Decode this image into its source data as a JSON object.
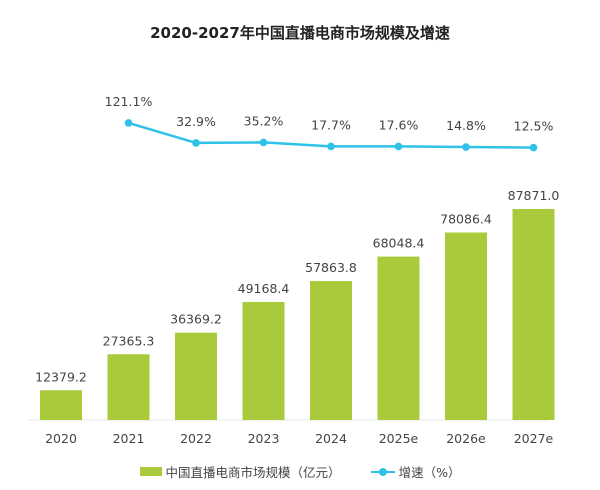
{
  "chart_data": {
    "type": "bar+line",
    "title": "2020-2027年中国直播电商市场规模及增速",
    "categories": [
      "2020",
      "2021",
      "2022",
      "2023",
      "2024",
      "2025e",
      "2026e",
      "2027e"
    ],
    "series": [
      {
        "name": "中国直播电商市场规模（亿元）",
        "type": "bar",
        "color": "#a9cb3b",
        "values": [
          12379.2,
          27365.3,
          36369.2,
          49168.4,
          57863.8,
          68048.4,
          78086.4,
          87871.0
        ],
        "labels": [
          "12379.2",
          "27365.3",
          "36369.2",
          "49168.4",
          "57863.8",
          "68048.4",
          "78086.4",
          "87871.0"
        ]
      },
      {
        "name": "增速（%）",
        "type": "line",
        "color": "#2ec2e8",
        "values": [
          null,
          121.1,
          32.9,
          35.2,
          17.7,
          17.6,
          14.8,
          12.5
        ],
        "labels": [
          "",
          "121.1%",
          "32.9%",
          "35.2%",
          "17.7%",
          "17.6%",
          "14.8%",
          "12.5%"
        ]
      }
    ],
    "grid": false,
    "legend": "bottom"
  }
}
